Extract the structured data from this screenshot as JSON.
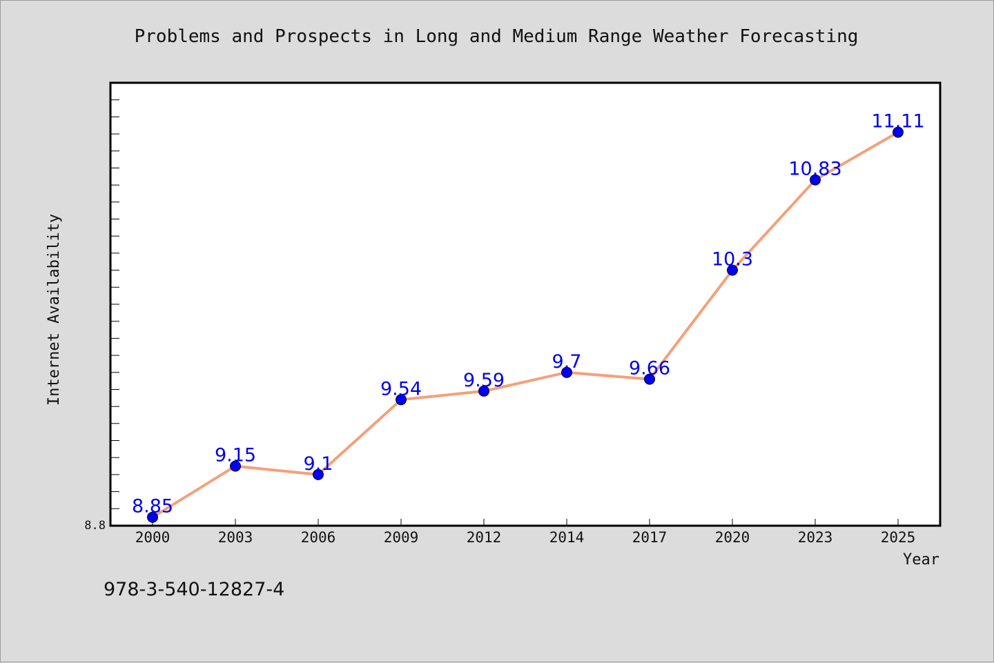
{
  "chart_data": {
    "type": "line",
    "title": "Problems and Prospects in Long and Medium Range Weather Forecasting",
    "xlabel": "Year",
    "ylabel": "Internet Availability",
    "categories": [
      "2000",
      "2003",
      "2006",
      "2009",
      "2012",
      "2014",
      "2017",
      "2020",
      "2023",
      "2025"
    ],
    "series": [
      {
        "values": [
          8.85,
          9.15,
          9.1,
          9.54,
          9.59,
          9.7,
          9.66,
          10.3,
          10.83,
          11.11
        ],
        "data_labels": [
          "8.85",
          "9.15",
          "9.1",
          "9.54",
          "9.59",
          "9.7",
          "9.66",
          "10.3",
          "10.83",
          "11.11"
        ],
        "color": "#f4a07a",
        "marker_color": "#0000ee"
      }
    ],
    "ylim": [
      8.8,
      11.4
    ],
    "y_min_label": "8.8",
    "grid": false,
    "legend": "none"
  },
  "footer": {
    "isbn": "978-3-540-12827-4"
  },
  "colors": {
    "background": "#dcdcdc",
    "plot_background": "#ffffff",
    "line": "#f4a07a",
    "markers": "#0000ee",
    "data_labels": "#0000ee"
  }
}
